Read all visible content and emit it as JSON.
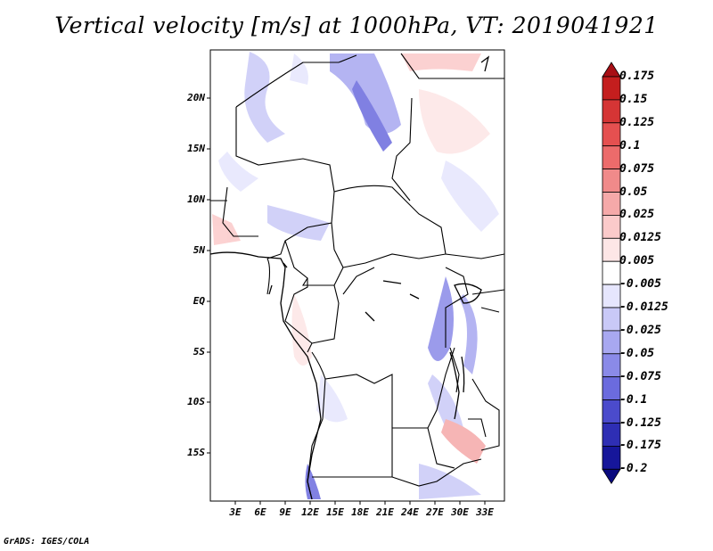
{
  "title": "Vertical velocity [m/s] at 1000hPa, VT: 2019041921",
  "credit": "GrADS: IGES/COLA",
  "lat_labels": [
    "20N",
    "15N",
    "10N",
    "5N",
    "EQ",
    "5S",
    "10S",
    "15S"
  ],
  "lon_labels": [
    "3E",
    "6E",
    "9E",
    "12E",
    "15E",
    "18E",
    "21E",
    "24E",
    "27E",
    "30E",
    "33E"
  ],
  "colorbar": {
    "levels": [
      "0.175",
      "0.15",
      "0.125",
      "0.1",
      "0.075",
      "0.05",
      "0.025",
      "0.0125",
      "0.005",
      "-0.005",
      "-0.0125",
      "-0.025",
      "-0.05",
      "-0.075",
      "-0.1",
      "-0.125",
      "-0.175",
      "-0.2"
    ],
    "colors": [
      "#a80f15",
      "#c41e1e",
      "#d53535",
      "#e55050",
      "#ec6b6b",
      "#f08a8a",
      "#f5a9a9",
      "#fbcaca",
      "#fde6e6",
      "#ffffff",
      "#e6e6fd",
      "#c9c9f7",
      "#a8a8f0",
      "#8a8ae8",
      "#6b6bde",
      "#4b4bcc",
      "#2e2eb4",
      "#16169a",
      "#0a0a7e"
    ]
  },
  "colors": {
    "land_border": "#000000",
    "frame": "#000000"
  }
}
